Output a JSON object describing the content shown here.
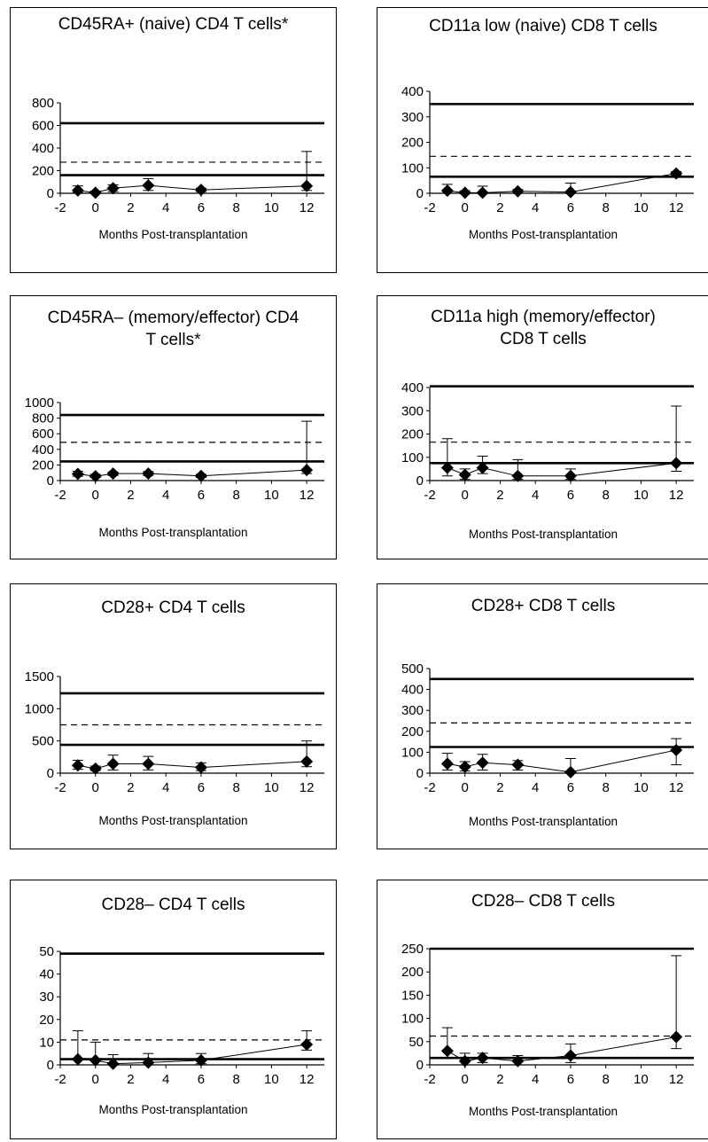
{
  "chart_data": [
    {
      "type": "line",
      "title": "CD45RA+ (naive) CD4 T cells*",
      "xlabel": "Months Post-transplantation",
      "ylabel": "",
      "xlim": [
        -2,
        13
      ],
      "xticks": [
        -2,
        0,
        2,
        4,
        6,
        8,
        10,
        12
      ],
      "ylim": [
        0,
        800
      ],
      "yticks": [
        0,
        200,
        400,
        600,
        800
      ],
      "reference_lines": {
        "upper": 620,
        "median": 275,
        "lower": 160
      },
      "x": [
        -1,
        0,
        1,
        3,
        6,
        12
      ],
      "values": [
        25,
        5,
        45,
        70,
        30,
        65
      ],
      "error_high": [
        65,
        20,
        75,
        130,
        45,
        370
      ],
      "error_low": [
        5,
        0,
        15,
        25,
        15,
        25
      ]
    },
    {
      "type": "line",
      "title": "CD11a low (naive) CD8 T cells",
      "xlabel": "Months Post-transplantation",
      "ylabel": "",
      "xlim": [
        -2,
        13
      ],
      "xticks": [
        -2,
        0,
        2,
        4,
        6,
        8,
        10,
        12
      ],
      "ylim": [
        0,
        400
      ],
      "yticks": [
        0,
        100,
        200,
        300,
        400
      ],
      "reference_lines": {
        "upper": 350,
        "median": 145,
        "lower": 65
      },
      "x": [
        -1,
        0,
        1,
        3,
        6,
        12
      ],
      "values": [
        10,
        2,
        2,
        8,
        5,
        78
      ],
      "error_high": [
        35,
        10,
        28,
        15,
        40,
        85
      ],
      "error_low": [
        0,
        0,
        0,
        0,
        0,
        70
      ]
    },
    {
      "type": "line",
      "title": "CD45RA– (memory/effector) CD4 T cells*",
      "xlabel": "Months Post-transplantation",
      "ylabel": "",
      "xlim": [
        -2,
        13
      ],
      "xticks": [
        -2,
        0,
        2,
        4,
        6,
        8,
        10,
        12
      ],
      "ylim": [
        0,
        1000
      ],
      "yticks": [
        0,
        200,
        400,
        600,
        800,
        1000
      ],
      "reference_lines": {
        "upper": 840,
        "median": 490,
        "lower": 245
      },
      "x": [
        -1,
        0,
        1,
        3,
        6,
        12
      ],
      "values": [
        85,
        55,
        90,
        90,
        60,
        135
      ],
      "error_high": [
        120,
        80,
        110,
        115,
        80,
        760
      ],
      "error_low": [
        55,
        40,
        65,
        65,
        40,
        90
      ]
    },
    {
      "type": "line",
      "title": "CD11a high (memory/effector) CD8 T cells",
      "xlabel": "Months Post-transplantation",
      "ylabel": "",
      "xlim": [
        -2,
        13
      ],
      "xticks": [
        -2,
        0,
        2,
        4,
        6,
        8,
        10,
        12
      ],
      "ylim": [
        0,
        400
      ],
      "yticks": [
        0,
        100,
        200,
        300,
        400
      ],
      "reference_lines": {
        "upper": 405,
        "median": 165,
        "lower": 75
      },
      "x": [
        -1,
        0,
        1,
        3,
        6,
        12
      ],
      "values": [
        55,
        25,
        55,
        20,
        20,
        75
      ],
      "error_high": [
        180,
        50,
        105,
        90,
        50,
        320
      ],
      "error_low": [
        20,
        5,
        30,
        5,
        5,
        40
      ]
    },
    {
      "type": "line",
      "title": "CD28+ CD4 T cells",
      "xlabel": "Months Post-transplantation",
      "ylabel": "",
      "xlim": [
        -2,
        13
      ],
      "xticks": [
        -2,
        0,
        2,
        4,
        6,
        8,
        10,
        12
      ],
      "ylim": [
        0,
        1500
      ],
      "yticks": [
        0,
        500,
        1000,
        1500
      ],
      "reference_lines": {
        "upper": 1240,
        "median": 750,
        "lower": 440
      },
      "x": [
        -1,
        0,
        1,
        3,
        6,
        12
      ],
      "values": [
        120,
        70,
        145,
        145,
        90,
        180
      ],
      "error_high": [
        200,
        110,
        280,
        260,
        160,
        500
      ],
      "error_low": [
        60,
        40,
        50,
        50,
        40,
        100
      ]
    },
    {
      "type": "line",
      "title": "CD28+ CD8 T cells",
      "xlabel": "Months Post-transplantation",
      "ylabel": "",
      "xlim": [
        -2,
        13
      ],
      "xticks": [
        -2,
        0,
        2,
        4,
        6,
        8,
        10,
        12
      ],
      "ylim": [
        0,
        500
      ],
      "yticks": [
        0,
        100,
        200,
        300,
        400,
        500
      ],
      "reference_lines": {
        "upper": 450,
        "median": 240,
        "lower": 125
      },
      "x": [
        -1,
        0,
        1,
        3,
        6,
        12
      ],
      "values": [
        45,
        30,
        50,
        40,
        5,
        110
      ],
      "error_high": [
        95,
        55,
        90,
        60,
        70,
        165
      ],
      "error_low": [
        15,
        10,
        15,
        15,
        0,
        40
      ]
    },
    {
      "type": "line",
      "title": "CD28– CD4 T cells",
      "xlabel": "Months Post-transplantation",
      "ylabel": "",
      "xlim": [
        -2,
        13
      ],
      "xticks": [
        -2,
        0,
        2,
        4,
        6,
        8,
        10,
        12
      ],
      "ylim": [
        0,
        50
      ],
      "yticks": [
        0,
        10,
        20,
        30,
        40,
        50
      ],
      "reference_lines": {
        "upper": 49,
        "median": 11,
        "lower": 2.5
      },
      "x": [
        -1,
        0,
        1,
        3,
        6,
        12
      ],
      "values": [
        2.5,
        2,
        0.5,
        1,
        2,
        9
      ],
      "error_high": [
        15,
        10,
        4.5,
        5,
        5,
        15
      ],
      "error_low": [
        0,
        0,
        0,
        0,
        0.5,
        6.5
      ]
    },
    {
      "type": "line",
      "title": "CD28– CD8 T cells",
      "xlabel": "Months Post-transplantation",
      "ylabel": "",
      "xlim": [
        -2,
        13
      ],
      "xticks": [
        -2,
        0,
        2,
        4,
        6,
        8,
        10,
        12
      ],
      "ylim": [
        0,
        250
      ],
      "yticks": [
        0,
        50,
        100,
        150,
        200,
        250
      ],
      "reference_lines": {
        "upper": 250,
        "median": 62,
        "lower": 15
      },
      "x": [
        -1,
        0,
        1,
        3,
        6,
        12
      ],
      "values": [
        30,
        8,
        15,
        8,
        20,
        60
      ],
      "error_high": [
        80,
        25,
        25,
        20,
        45,
        235
      ],
      "error_low": [
        15,
        0,
        5,
        0,
        5,
        35
      ]
    }
  ]
}
